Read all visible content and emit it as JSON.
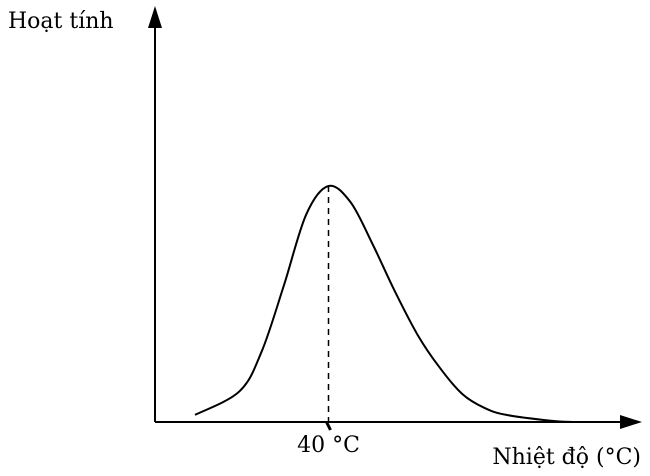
{
  "chart_data": {
    "type": "line",
    "ylabel": "Hoạt tính",
    "xlabel": "Nhiệt độ (°C)",
    "peak_label": "40 °C",
    "peak_x": 40,
    "grid": false,
    "legend": "none",
    "series": [
      {
        "x": [
          10,
          20,
          25,
          30,
          35,
          40,
          45,
          50,
          55,
          60,
          65,
          70,
          75,
          80,
          90,
          95
        ],
        "y": [
          0.03,
          0.13,
          0.3,
          0.58,
          0.88,
          1.0,
          0.93,
          0.75,
          0.55,
          0.37,
          0.23,
          0.12,
          0.06,
          0.03,
          0.005,
          0
        ]
      }
    ]
  }
}
